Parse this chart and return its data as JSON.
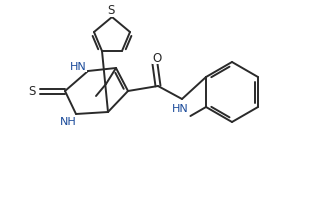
{
  "bg_color": "#ffffff",
  "line_color": "#2a2a2a",
  "heteroatom_color": "#1a4a9a",
  "bond_lw": 1.4,
  "font_size": 8.5,
  "fig_width": 3.1,
  "fig_height": 2.05,
  "dpi": 100,
  "xlim": [
    0,
    310
  ],
  "ylim": [
    0,
    205
  ]
}
